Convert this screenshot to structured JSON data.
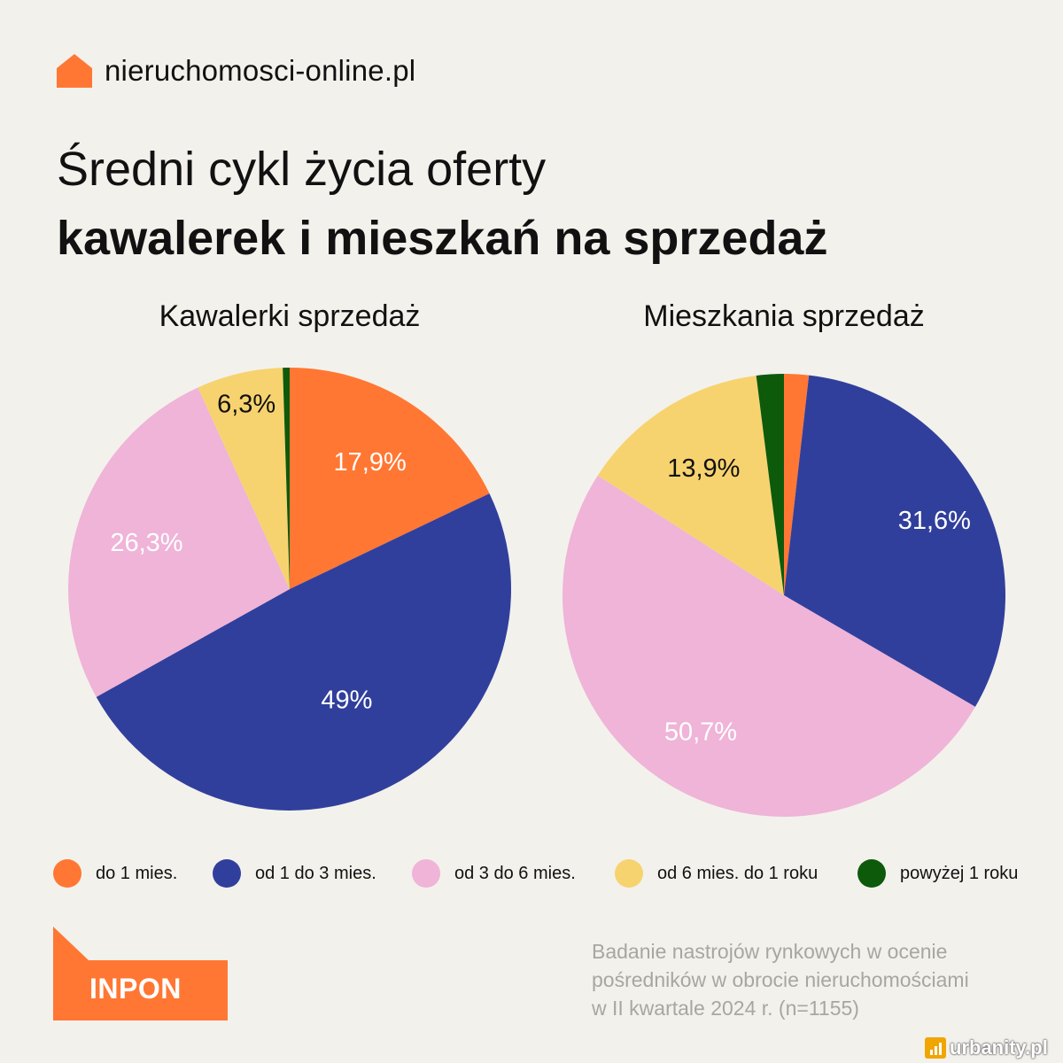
{
  "brand": {
    "name": "nieruchomosci-online.pl",
    "icon": "house-icon",
    "color": "#ff7733"
  },
  "title": {
    "line1": "Średni cykl życia oferty",
    "line2": "kawalerek i mieszkań na sprzedaż"
  },
  "chart_data": [
    {
      "type": "pie",
      "title": "Kawalerki sprzedaż",
      "categories": [
        "do 1 mies.",
        "od 1 do 3 mies.",
        "od 3 do 6 mies.",
        "od 6 mies. do 1 roku",
        "powyżej 1 roku"
      ],
      "values": [
        17.9,
        49,
        26.3,
        6.3,
        0.5
      ],
      "labels": [
        "17,9%",
        "49%",
        "26,3%",
        "6,3%",
        ""
      ],
      "colors": [
        "#ff7733",
        "#313f9c",
        "#efb4d8",
        "#f7d36f",
        "#0d5a0b"
      ],
      "label_colors": [
        "#ffffff",
        "#ffffff",
        "#ffffff",
        "#111111",
        "#111111"
      ]
    },
    {
      "type": "pie",
      "title": "Mieszkania sprzedaż",
      "categories": [
        "do 1 mies.",
        "od 1 do 3 mies.",
        "od 3 do 6 mies.",
        "od 6 mies. do 1 roku",
        "powyżej 1 roku"
      ],
      "values": [
        1.8,
        31.6,
        50.7,
        13.9,
        2.0
      ],
      "labels": [
        "",
        "31,6%",
        "50,7%",
        "13,9%",
        ""
      ],
      "colors": [
        "#ff7733",
        "#313f9c",
        "#efb4d8",
        "#f7d36f",
        "#0d5a0b"
      ],
      "label_colors": [
        "#ffffff",
        "#ffffff",
        "#ffffff",
        "#111111",
        "#111111"
      ]
    }
  ],
  "legend": [
    {
      "label": "do 1 mies.",
      "color": "#ff7733"
    },
    {
      "label": "od 1 do 3 mies.",
      "color": "#313f9c"
    },
    {
      "label": "od 3 do 6 mies.",
      "color": "#efb4d8"
    },
    {
      "label": "od 6 mies. do 1 roku",
      "color": "#f7d36f"
    },
    {
      "label": "powyżej 1 roku",
      "color": "#0d5a0b"
    }
  ],
  "logo": {
    "text": "INPON",
    "color": "#ff7733"
  },
  "source": [
    "Badanie nastrojów rynkowych w ocenie",
    "pośredników w obrocie nieruchomościami",
    "w II kwartale 2024 r. (n=1155)"
  ],
  "watermark": {
    "text": "urbanity.pl",
    "icon": "bar-chart-icon"
  }
}
